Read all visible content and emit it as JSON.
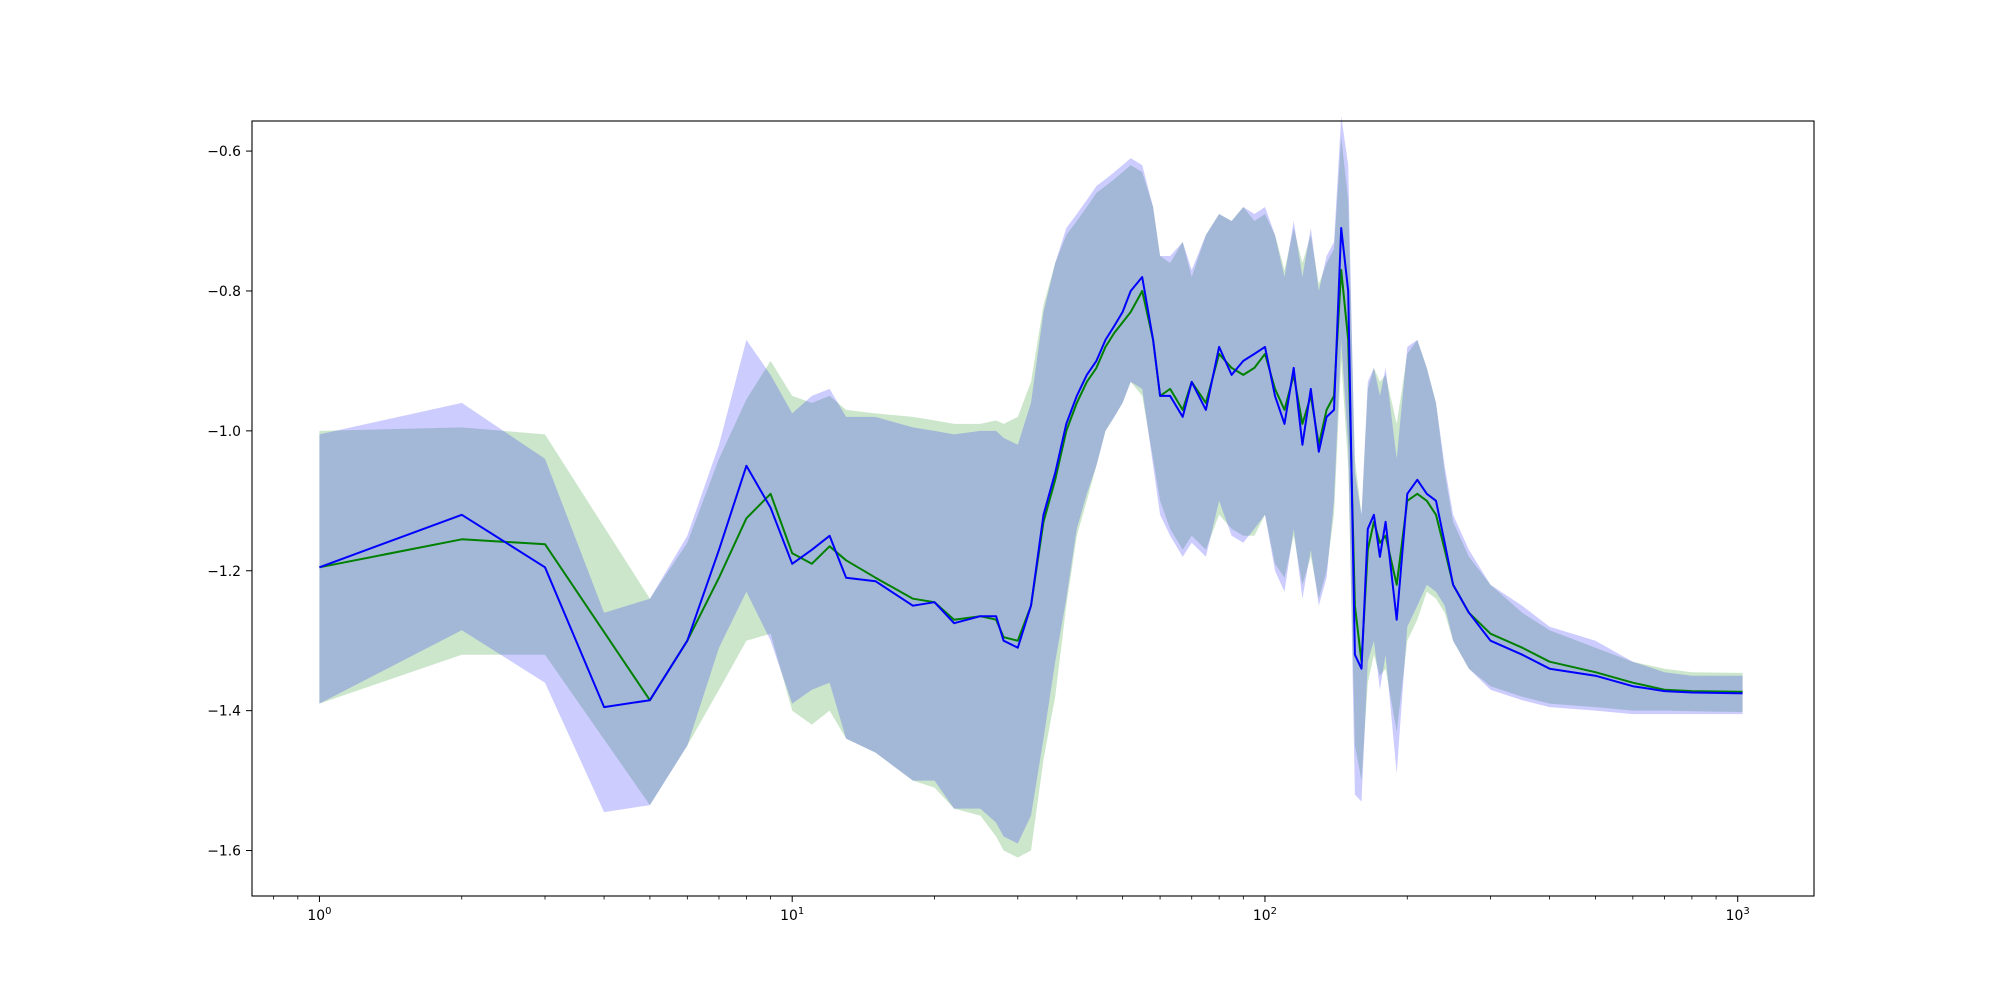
{
  "chart_data": {
    "type": "line",
    "xscale": "log",
    "xlim": [
      0.72,
      1450
    ],
    "ylim": [
      -1.665,
      -0.557
    ],
    "grid": false,
    "legend": "none",
    "x_ticks": [
      {
        "value": 1,
        "base": "10",
        "exp": "0"
      },
      {
        "value": 10,
        "base": "10",
        "exp": "1"
      },
      {
        "value": 100,
        "base": "10",
        "exp": "2"
      },
      {
        "value": 1000,
        "base": "10",
        "exp": "3"
      }
    ],
    "y_ticks": [
      {
        "value": -0.6,
        "label": "−0.6"
      },
      {
        "value": -0.8,
        "label": "−0.8"
      },
      {
        "value": -1.0,
        "label": "−1.0"
      },
      {
        "value": -1.2,
        "label": "−1.2"
      },
      {
        "value": -1.4,
        "label": "−1.4"
      },
      {
        "value": -1.6,
        "label": "−1.6"
      }
    ],
    "series": [
      {
        "color": "#008000",
        "band_color": "#008000",
        "band_opacity": 0.2,
        "x": [
          1,
          2,
          3,
          5,
          6,
          7,
          8,
          9,
          10,
          11,
          12,
          13,
          15,
          18,
          20,
          22,
          25,
          27,
          28,
          30,
          32,
          34,
          36,
          38,
          40,
          42,
          44,
          46,
          48,
          50,
          52,
          55,
          58,
          60,
          63,
          67,
          70,
          75,
          80,
          85,
          90,
          95,
          100,
          105,
          110,
          115,
          120,
          125,
          130,
          135,
          140,
          145,
          150,
          155,
          160,
          165,
          170,
          175,
          180,
          190,
          200,
          210,
          220,
          230,
          240,
          250,
          270,
          300,
          350,
          400,
          500,
          600,
          700,
          800,
          1000,
          1024
        ],
        "mean": [
          -1.195,
          -1.155,
          -1.162,
          -1.385,
          -1.3,
          -1.21,
          -1.125,
          -1.09,
          -1.175,
          -1.19,
          -1.165,
          -1.185,
          -1.21,
          -1.24,
          -1.245,
          -1.27,
          -1.265,
          -1.27,
          -1.295,
          -1.3,
          -1.25,
          -1.13,
          -1.07,
          -1.0,
          -0.96,
          -0.93,
          -0.91,
          -0.88,
          -0.86,
          -0.845,
          -0.83,
          -0.8,
          -0.87,
          -0.95,
          -0.94,
          -0.97,
          -0.93,
          -0.96,
          -0.89,
          -0.91,
          -0.92,
          -0.91,
          -0.89,
          -0.94,
          -0.97,
          -0.92,
          -0.99,
          -0.95,
          -1.02,
          -0.97,
          -0.95,
          -0.77,
          -0.87,
          -1.25,
          -1.33,
          -1.17,
          -1.13,
          -1.16,
          -1.15,
          -1.22,
          -1.1,
          -1.09,
          -1.1,
          -1.12,
          -1.17,
          -1.22,
          -1.26,
          -1.29,
          -1.31,
          -1.33,
          -1.345,
          -1.36,
          -1.37,
          -1.372,
          -1.373,
          -1.373
        ],
        "lower": [
          -1.39,
          -1.32,
          -1.32,
          -1.535,
          -1.45,
          -1.37,
          -1.3,
          -1.29,
          -1.4,
          -1.42,
          -1.4,
          -1.44,
          -1.46,
          -1.5,
          -1.51,
          -1.54,
          -1.55,
          -1.58,
          -1.6,
          -1.61,
          -1.6,
          -1.47,
          -1.38,
          -1.25,
          -1.15,
          -1.1,
          -1.05,
          -1.0,
          -0.98,
          -0.96,
          -0.93,
          -0.95,
          -1.04,
          -1.1,
          -1.14,
          -1.17,
          -1.15,
          -1.17,
          -1.12,
          -1.14,
          -1.15,
          -1.15,
          -1.12,
          -1.19,
          -1.21,
          -1.15,
          -1.22,
          -1.18,
          -1.24,
          -1.2,
          -1.12,
          -0.9,
          -1.05,
          -1.45,
          -1.5,
          -1.36,
          -1.32,
          -1.35,
          -1.34,
          -1.43,
          -1.3,
          -1.27,
          -1.23,
          -1.24,
          -1.26,
          -1.3,
          -1.34,
          -1.365,
          -1.38,
          -1.39,
          -1.395,
          -1.4,
          -1.4,
          -1.401,
          -1.402,
          -1.402
        ],
        "upper": [
          -1.0,
          -0.995,
          -1.005,
          -1.24,
          -1.16,
          -1.04,
          -0.955,
          -0.9,
          -0.95,
          -0.96,
          -0.95,
          -0.97,
          -0.975,
          -0.98,
          -0.985,
          -0.99,
          -0.99,
          -0.985,
          -0.99,
          -0.98,
          -0.93,
          -0.82,
          -0.76,
          -0.72,
          -0.7,
          -0.68,
          -0.66,
          -0.65,
          -0.64,
          -0.63,
          -0.62,
          -0.63,
          -0.68,
          -0.75,
          -0.76,
          -0.73,
          -0.78,
          -0.72,
          -0.69,
          -0.7,
          -0.68,
          -0.7,
          -0.69,
          -0.72,
          -0.77,
          -0.71,
          -0.76,
          -0.72,
          -0.79,
          -0.76,
          -0.74,
          -0.58,
          -0.67,
          -1.04,
          -1.12,
          -0.94,
          -0.91,
          -0.93,
          -0.92,
          -0.99,
          -0.89,
          -0.87,
          -0.91,
          -0.96,
          -1.06,
          -1.13,
          -1.18,
          -1.22,
          -1.26,
          -1.285,
          -1.31,
          -1.33,
          -1.34,
          -1.345,
          -1.346,
          -1.346
        ]
      },
      {
        "color": "#0000ff",
        "band_color": "#0000ff",
        "band_opacity": 0.2,
        "x": [
          1,
          2,
          3,
          4,
          5,
          6,
          7,
          8,
          9,
          10,
          11,
          12,
          13,
          15,
          18,
          20,
          22,
          25,
          27,
          28,
          30,
          32,
          34,
          36,
          38,
          40,
          42,
          44,
          46,
          48,
          50,
          52,
          55,
          58,
          60,
          63,
          67,
          70,
          75,
          80,
          85,
          90,
          95,
          100,
          105,
          110,
          115,
          120,
          125,
          130,
          135,
          140,
          145,
          150,
          155,
          160,
          165,
          170,
          175,
          180,
          190,
          200,
          210,
          220,
          230,
          240,
          250,
          270,
          300,
          350,
          400,
          500,
          600,
          700,
          800,
          1000,
          1024
        ],
        "mean": [
          -1.195,
          -1.12,
          -1.195,
          -1.395,
          -1.385,
          -1.3,
          -1.17,
          -1.05,
          -1.11,
          -1.19,
          -1.17,
          -1.15,
          -1.21,
          -1.215,
          -1.25,
          -1.245,
          -1.275,
          -1.265,
          -1.265,
          -1.3,
          -1.31,
          -1.25,
          -1.12,
          -1.06,
          -0.99,
          -0.95,
          -0.92,
          -0.9,
          -0.87,
          -0.85,
          -0.83,
          -0.8,
          -0.78,
          -0.87,
          -0.95,
          -0.95,
          -0.98,
          -0.93,
          -0.97,
          -0.88,
          -0.92,
          -0.9,
          -0.89,
          -0.88,
          -0.95,
          -0.99,
          -0.91,
          -1.02,
          -0.94,
          -1.03,
          -0.98,
          -0.97,
          -0.71,
          -0.8,
          -1.32,
          -1.34,
          -1.14,
          -1.12,
          -1.18,
          -1.13,
          -1.27,
          -1.09,
          -1.07,
          -1.09,
          -1.1,
          -1.16,
          -1.22,
          -1.26,
          -1.3,
          -1.32,
          -1.34,
          -1.35,
          -1.365,
          -1.372,
          -1.374,
          -1.375,
          -1.375
        ],
        "lower": [
          -1.39,
          -1.285,
          -1.36,
          -1.545,
          -1.535,
          -1.45,
          -1.31,
          -1.23,
          -1.3,
          -1.39,
          -1.37,
          -1.36,
          -1.44,
          -1.46,
          -1.5,
          -1.5,
          -1.54,
          -1.54,
          -1.56,
          -1.58,
          -1.59,
          -1.55,
          -1.44,
          -1.33,
          -1.24,
          -1.14,
          -1.09,
          -1.05,
          -1.0,
          -0.98,
          -0.96,
          -0.93,
          -0.94,
          -1.05,
          -1.12,
          -1.15,
          -1.18,
          -1.16,
          -1.18,
          -1.1,
          -1.15,
          -1.16,
          -1.14,
          -1.12,
          -1.2,
          -1.23,
          -1.14,
          -1.24,
          -1.17,
          -1.25,
          -1.21,
          -1.1,
          -0.87,
          -1.02,
          -1.52,
          -1.53,
          -1.33,
          -1.3,
          -1.37,
          -1.32,
          -1.49,
          -1.28,
          -1.25,
          -1.22,
          -1.23,
          -1.25,
          -1.3,
          -1.34,
          -1.37,
          -1.385,
          -1.395,
          -1.4,
          -1.405,
          -1.405,
          -1.405,
          -1.405,
          -1.405
        ],
        "upper": [
          -1.005,
          -0.96,
          -1.04,
          -1.26,
          -1.24,
          -1.15,
          -1.02,
          -0.87,
          -0.92,
          -0.975,
          -0.95,
          -0.94,
          -0.98,
          -0.98,
          -0.995,
          -1.0,
          -1.005,
          -1.0,
          -1.0,
          -1.01,
          -1.02,
          -0.96,
          -0.83,
          -0.76,
          -0.71,
          -0.69,
          -0.67,
          -0.65,
          -0.64,
          -0.63,
          -0.62,
          -0.61,
          -0.62,
          -0.68,
          -0.75,
          -0.75,
          -0.73,
          -0.77,
          -0.72,
          -0.69,
          -0.7,
          -0.68,
          -0.69,
          -0.68,
          -0.72,
          -0.78,
          -0.7,
          -0.78,
          -0.71,
          -0.8,
          -0.75,
          -0.73,
          -0.55,
          -0.62,
          -1.06,
          -1.12,
          -0.93,
          -0.91,
          -0.95,
          -0.91,
          -1.04,
          -0.88,
          -0.87,
          -0.91,
          -0.96,
          -1.05,
          -1.12,
          -1.17,
          -1.22,
          -1.25,
          -1.28,
          -1.3,
          -1.33,
          -1.345,
          -1.35,
          -1.35,
          -1.35
        ]
      }
    ]
  }
}
